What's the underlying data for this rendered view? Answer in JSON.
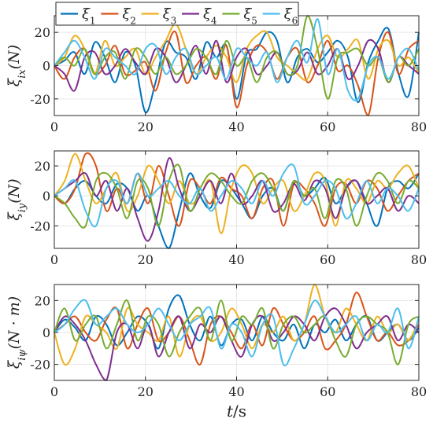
{
  "chart_data": [
    {
      "type": "line",
      "ylabel": "ξ_ix(N)",
      "ylabel_main": "ξ",
      "ylabel_sub": "ix",
      "ylabel_rest": "(N)",
      "xlim": [
        0,
        80
      ],
      "ylim": [
        -30,
        30
      ],
      "xticks": [
        "0",
        "20",
        "40",
        "60",
        "80"
      ],
      "yticks": [
        "20",
        "0",
        "-20"
      ],
      "ytick_values": [
        20,
        0,
        -20
      ],
      "grid": true,
      "series": [
        {
          "name": "ξ1",
          "values": [
            0,
            3,
            8,
            -5,
            14,
            5,
            -10,
            8,
            0,
            -28,
            -10,
            14,
            8,
            5,
            -8,
            14,
            5,
            12,
            -20,
            7,
            10,
            20,
            15,
            -10,
            5,
            10,
            2,
            8,
            15,
            5,
            -22,
            2,
            15,
            22,
            -5,
            -18,
            20
          ]
        },
        {
          "name": "ξ2",
          "values": [
            0,
            -8,
            5,
            10,
            -5,
            0,
            12,
            -5,
            -3,
            2,
            -15,
            8,
            20,
            -10,
            0,
            5,
            -8,
            12,
            -25,
            0,
            12,
            8,
            -8,
            5,
            10,
            -10,
            0,
            15,
            -3,
            0,
            -12,
            -30,
            5,
            20,
            -5,
            10,
            15
          ]
        },
        {
          "name": "ξ3",
          "values": [
            0,
            5,
            18,
            10,
            -5,
            15,
            0,
            5,
            10,
            -5,
            5,
            15,
            25,
            10,
            -5,
            5,
            12,
            5,
            -10,
            10,
            18,
            20,
            5,
            0,
            -5,
            -8,
            10,
            18,
            5,
            10,
            15,
            -8,
            10,
            15,
            0,
            5,
            -5
          ]
        },
        {
          "name": "ξ4",
          "values": [
            0,
            -5,
            -15,
            5,
            8,
            -5,
            0,
            10,
            2,
            -5,
            10,
            5,
            -10,
            0,
            12,
            -5,
            15,
            -10,
            5,
            10,
            -5,
            0,
            8,
            -5,
            -3,
            8,
            -5,
            0,
            10,
            -8,
            0,
            15,
            10,
            -10,
            5,
            0,
            -5
          ]
        },
        {
          "name": "ξ5",
          "values": [
            0,
            5,
            0,
            10,
            -5,
            5,
            8,
            -8,
            10,
            5,
            -5,
            5,
            -5,
            0,
            10,
            5,
            -5,
            15,
            0,
            5,
            -10,
            5,
            8,
            -5,
            0,
            30,
            10,
            -20,
            5,
            8,
            10,
            0,
            5,
            -10,
            5,
            0,
            10
          ]
        },
        {
          "name": "ξ6",
          "values": [
            0,
            8,
            15,
            5,
            -8,
            10,
            5,
            0,
            -5,
            10,
            12,
            -5,
            5,
            10,
            -5,
            0,
            5,
            -8,
            10,
            5,
            0,
            8,
            -10,
            5,
            15,
            2,
            28,
            -5,
            10,
            -15,
            -20,
            0,
            5,
            -8,
            5,
            10,
            -3
          ]
        }
      ]
    },
    {
      "type": "line",
      "ylabel": "ξ_iy(N)",
      "ylabel_main": "ξ",
      "ylabel_sub": "iy",
      "ylabel_rest": "(N)",
      "xlim": [
        0,
        80
      ],
      "ylim": [
        -35,
        30
      ],
      "xticks": [
        "0",
        "20",
        "40",
        "60",
        "80"
      ],
      "yticks": [
        "20",
        "0",
        "-20"
      ],
      "ytick_values": [
        20,
        0,
        -20
      ],
      "grid": true,
      "series": [
        {
          "name": "ξ1",
          "values": [
            0,
            -5,
            5,
            10,
            0,
            -5,
            8,
            5,
            -10,
            0,
            -20,
            -35,
            -10,
            15,
            0,
            -8,
            10,
            5,
            -5,
            -15,
            0,
            5,
            -10,
            10,
            0,
            5,
            12,
            -5,
            5,
            10,
            -5,
            -20,
            5,
            10,
            5,
            15
          ]
        },
        {
          "name": "ξ2",
          "values": [
            0,
            -5,
            5,
            28,
            20,
            -10,
            5,
            -5,
            15,
            -5,
            20,
            0,
            -20,
            10,
            5,
            -5,
            12,
            5,
            0,
            -15,
            5,
            10,
            -20,
            8,
            5,
            -5,
            -20,
            5,
            8,
            -5,
            10,
            5,
            -10,
            0,
            10,
            15
          ]
        },
        {
          "name": "ξ3",
          "values": [
            0,
            10,
            28,
            10,
            -5,
            5,
            15,
            -10,
            0,
            20,
            10,
            -5,
            10,
            -5,
            0,
            10,
            -25,
            5,
            20,
            15,
            -5,
            5,
            10,
            -10,
            0,
            15,
            10,
            -20,
            10,
            5,
            -5,
            10,
            5,
            15,
            20,
            5
          ]
        },
        {
          "name": "ξ4",
          "values": [
            0,
            5,
            10,
            15,
            0,
            10,
            -10,
            5,
            -15,
            -30,
            -10,
            25,
            5,
            -10,
            0,
            10,
            -5,
            15,
            -5,
            0,
            10,
            -10,
            -5,
            8,
            -3,
            10,
            5,
            -15,
            5,
            10,
            -5,
            0,
            5,
            -10,
            0,
            -5
          ]
        },
        {
          "name": "ξ5",
          "values": [
            0,
            -5,
            -15,
            -20,
            10,
            15,
            5,
            -15,
            10,
            5,
            -20,
            10,
            20,
            -10,
            5,
            15,
            10,
            0,
            -5,
            10,
            15,
            5,
            -10,
            10,
            0,
            5,
            -15,
            10,
            5,
            -20,
            0,
            15,
            10,
            -5,
            10,
            5
          ]
        },
        {
          "name": "ξ6",
          "values": [
            0,
            5,
            10,
            -10,
            -20,
            5,
            10,
            -5,
            15,
            0,
            5,
            10,
            0,
            -5,
            5,
            -10,
            0,
            10,
            5,
            -5,
            10,
            0,
            15,
            20,
            -5,
            0,
            10,
            5,
            -15,
            -5,
            10,
            -5,
            5,
            0,
            -10,
            5
          ]
        }
      ]
    },
    {
      "type": "line",
      "ylabel": "ξ_iψ(N·m)",
      "ylabel_main": "ξ",
      "ylabel_sub": "iψ",
      "ylabel_rest": "(N · m)",
      "xlabel": "t/s",
      "xlim": [
        0,
        80
      ],
      "ylim": [
        -30,
        30
      ],
      "xticks": [
        "0",
        "20",
        "40",
        "60",
        "80"
      ],
      "yticks": [
        "20",
        "0",
        "-20"
      ],
      "ytick_values": [
        20,
        0,
        -20
      ],
      "grid": true,
      "series": [
        {
          "name": "ξ1",
          "values": [
            0,
            8,
            3,
            -5,
            10,
            5,
            -8,
            0,
            10,
            5,
            -10,
            15,
            23,
            5,
            -5,
            10,
            -8,
            5,
            8,
            -5,
            10,
            0,
            -5,
            5,
            -10,
            5,
            0,
            8,
            -5,
            5,
            10,
            -5,
            0,
            5,
            -5,
            3
          ]
        },
        {
          "name": "ξ2",
          "values": [
            0,
            5,
            10,
            0,
            -5,
            8,
            15,
            -10,
            5,
            15,
            -5,
            0,
            10,
            -5,
            -20,
            5,
            10,
            0,
            -10,
            5,
            -8,
            15,
            5,
            -5,
            0,
            10,
            -10,
            -5,
            5,
            25,
            10,
            -5,
            0,
            -8,
            -5,
            5
          ]
        },
        {
          "name": "ξ3",
          "values": [
            0,
            -20,
            -10,
            10,
            5,
            0,
            -10,
            15,
            5,
            0,
            -5,
            10,
            -15,
            5,
            10,
            -5,
            0,
            15,
            5,
            -10,
            5,
            0,
            10,
            -5,
            5,
            30,
            10,
            0,
            15,
            5,
            -5,
            10,
            0,
            5,
            -5,
            8
          ]
        },
        {
          "name": "ξ4",
          "values": [
            0,
            10,
            5,
            -5,
            -20,
            -30,
            0,
            5,
            -10,
            5,
            -15,
            0,
            10,
            -10,
            5,
            0,
            10,
            -5,
            -15,
            5,
            10,
            -5,
            0,
            10,
            5,
            -5,
            10,
            15,
            5,
            -10,
            0,
            5,
            10,
            -5,
            5,
            0
          ]
        },
        {
          "name": "ξ5",
          "values": [
            0,
            15,
            -5,
            5,
            10,
            -10,
            5,
            20,
            -5,
            10,
            5,
            -15,
            0,
            10,
            15,
            -5,
            20,
            -5,
            10,
            5,
            15,
            -10,
            5,
            10,
            0,
            5,
            10,
            -5,
            -15,
            5,
            10,
            5,
            0,
            -20,
            5,
            10
          ]
        },
        {
          "name": "ξ6",
          "values": [
            0,
            5,
            15,
            20,
            5,
            10,
            15,
            5,
            0,
            5,
            15,
            5,
            -5,
            5,
            10,
            15,
            -10,
            5,
            0,
            -15,
            5,
            10,
            -20,
            -10,
            5,
            20,
            10,
            0,
            5,
            10,
            -5,
            5,
            0,
            15,
            -10,
            10
          ]
        }
      ]
    }
  ],
  "legend": {
    "placement": "top-left",
    "entries": [
      {
        "main": "ξ",
        "sub": "1"
      },
      {
        "main": "ξ",
        "sub": "2"
      },
      {
        "main": "ξ",
        "sub": "3"
      },
      {
        "main": "ξ",
        "sub": "4"
      },
      {
        "main": "ξ",
        "sub": "5"
      },
      {
        "main": "ξ",
        "sub": "6"
      }
    ]
  },
  "colors": [
    "#0072BD",
    "#D95319",
    "#EDB120",
    "#7E2F8E",
    "#77AC30",
    "#4DBEEE"
  ],
  "xlabel_main": "t",
  "xlabel_rest": "/s"
}
